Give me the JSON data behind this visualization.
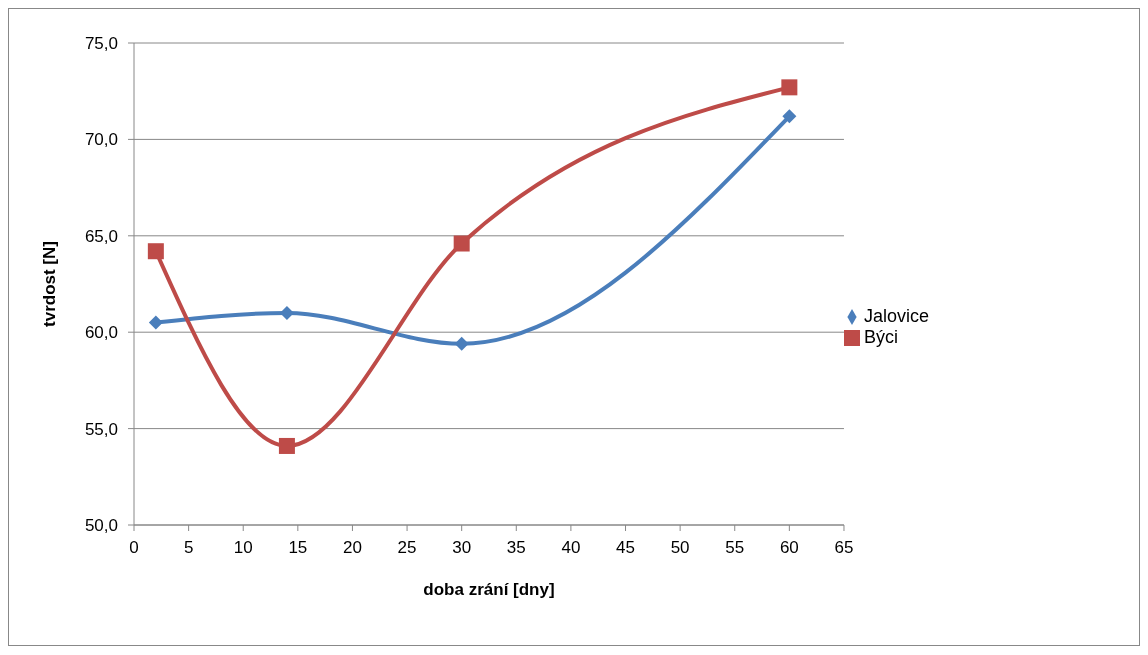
{
  "chart_data": {
    "type": "line",
    "xlabel": "doba zrání [dny]",
    "ylabel": "tvrdost [N]",
    "x": [
      2,
      14,
      30,
      60
    ],
    "series": [
      {
        "name": "Jalovice",
        "color": "#4a7ebb",
        "values": [
          60.5,
          61.0,
          59.4,
          71.2
        ],
        "marker": "diamond"
      },
      {
        "name": "Býci",
        "color": "#be4b48",
        "values": [
          64.2,
          54.1,
          64.6,
          72.7
        ],
        "marker": "square"
      }
    ],
    "xlim": [
      0,
      65
    ],
    "xticks": [
      0,
      5,
      10,
      15,
      20,
      25,
      30,
      35,
      40,
      45,
      50,
      55,
      60,
      65
    ],
    "ylim": [
      50,
      75
    ],
    "yticks": [
      {
        "value": 50,
        "label": "50,0"
      },
      {
        "value": 55,
        "label": "55,0"
      },
      {
        "value": 60,
        "label": "60,0"
      },
      {
        "value": 65,
        "label": "65,0"
      },
      {
        "value": 70,
        "label": "70,0"
      },
      {
        "value": 75,
        "label": "75,0"
      }
    ],
    "grid": "y",
    "legend": "right",
    "line_style": "solid"
  }
}
